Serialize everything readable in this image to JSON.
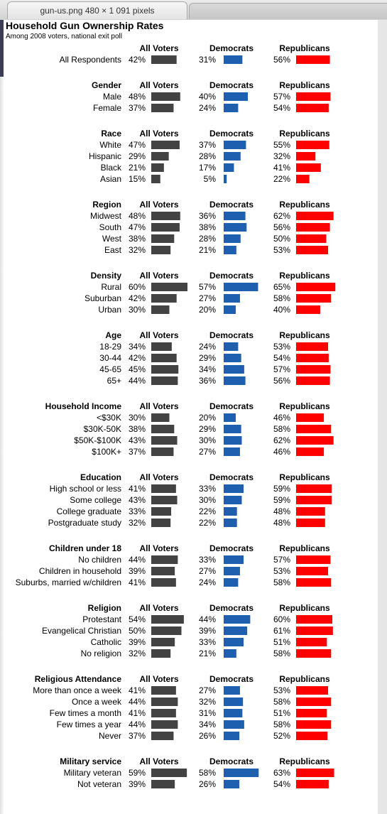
{
  "window": {
    "tab_title": "gun-us.png 480 × 1 091 pixels"
  },
  "chart_data": {
    "type": "bar",
    "title": "Household Gun Ownership Rates",
    "subtitle": "Among 2008 voters, national exit poll",
    "columns": [
      "All Voters",
      "Democrats",
      "Republicans"
    ],
    "colors": {
      "All Voters": "#434343",
      "Democrats": "#1f5fb0",
      "Republicans": "#ff0000"
    },
    "sections": [
      {
        "title": "",
        "rows": [
          {
            "label": "All Respondents",
            "values": [
              42,
              31,
              56
            ]
          }
        ]
      },
      {
        "title": "Gender",
        "rows": [
          {
            "label": "Male",
            "values": [
              48,
              40,
              57
            ]
          },
          {
            "label": "Female",
            "values": [
              37,
              24,
              54
            ]
          }
        ]
      },
      {
        "title": "Race",
        "rows": [
          {
            "label": "White",
            "values": [
              47,
              37,
              55
            ]
          },
          {
            "label": "Hispanic",
            "values": [
              29,
              28,
              32
            ]
          },
          {
            "label": "Black",
            "values": [
              21,
              17,
              41
            ]
          },
          {
            "label": "Asian",
            "values": [
              15,
              5,
              22
            ]
          }
        ]
      },
      {
        "title": "Region",
        "rows": [
          {
            "label": "Midwest",
            "values": [
              48,
              36,
              62
            ]
          },
          {
            "label": "South",
            "values": [
              47,
              38,
              56
            ]
          },
          {
            "label": "West",
            "values": [
              38,
              28,
              50
            ]
          },
          {
            "label": "East",
            "values": [
              32,
              21,
              53
            ]
          }
        ]
      },
      {
        "title": "Density",
        "rows": [
          {
            "label": "Rural",
            "values": [
              60,
              57,
              65
            ]
          },
          {
            "label": "Suburban",
            "values": [
              42,
              27,
              58
            ]
          },
          {
            "label": "Urban",
            "values": [
              30,
              20,
              40
            ]
          }
        ]
      },
      {
        "title": "Age",
        "rows": [
          {
            "label": "18-29",
            "values": [
              34,
              24,
              53
            ]
          },
          {
            "label": "30-44",
            "values": [
              42,
              29,
              54
            ]
          },
          {
            "label": "45-65",
            "values": [
              45,
              34,
              57
            ]
          },
          {
            "label": "65+",
            "values": [
              44,
              36,
              56
            ]
          }
        ]
      },
      {
        "title": "Household Income",
        "rows": [
          {
            "label": "<$30K",
            "values": [
              30,
              20,
              46
            ]
          },
          {
            "label": "$30K-50K",
            "values": [
              38,
              29,
              58
            ]
          },
          {
            "label": "$50K-$100K",
            "values": [
              43,
              30,
              62
            ]
          },
          {
            "label": "$100K+",
            "values": [
              37,
              27,
              46
            ]
          }
        ]
      },
      {
        "title": "Education",
        "rows": [
          {
            "label": "High school or less",
            "values": [
              41,
              33,
              59
            ]
          },
          {
            "label": "Some college",
            "values": [
              43,
              30,
              59
            ]
          },
          {
            "label": "College graduate",
            "values": [
              33,
              22,
              48
            ]
          },
          {
            "label": "Postgraduate study",
            "values": [
              32,
              22,
              48
            ]
          }
        ]
      },
      {
        "title": "Children under 18",
        "rows": [
          {
            "label": "No children",
            "values": [
              44,
              33,
              57
            ]
          },
          {
            "label": "Children in household",
            "values": [
              39,
              27,
              53
            ]
          },
          {
            "label": "Suburbs, married w/children",
            "values": [
              41,
              24,
              58
            ]
          }
        ]
      },
      {
        "title": "Religion",
        "rows": [
          {
            "label": "Protestant",
            "values": [
              54,
              44,
              60
            ]
          },
          {
            "label": "Evangelical Christian",
            "values": [
              50,
              39,
              61
            ]
          },
          {
            "label": "Catholic",
            "values": [
              39,
              33,
              51
            ]
          },
          {
            "label": "No religion",
            "values": [
              32,
              21,
              58
            ]
          }
        ]
      },
      {
        "title": "Religious Attendance",
        "rows": [
          {
            "label": "More than once a week",
            "values": [
              41,
              27,
              53
            ]
          },
          {
            "label": "Once a week",
            "values": [
              44,
              32,
              58
            ]
          },
          {
            "label": "Few times a month",
            "values": [
              41,
              31,
              51
            ]
          },
          {
            "label": "Few times a year",
            "values": [
              44,
              34,
              58
            ]
          },
          {
            "label": "Never",
            "values": [
              37,
              26,
              52
            ]
          }
        ]
      },
      {
        "title": "Military service",
        "rows": [
          {
            "label": "Military veteran",
            "values": [
              59,
              58,
              63
            ]
          },
          {
            "label": "Not veteran",
            "values": [
              39,
              26,
              54
            ]
          }
        ]
      }
    ]
  }
}
